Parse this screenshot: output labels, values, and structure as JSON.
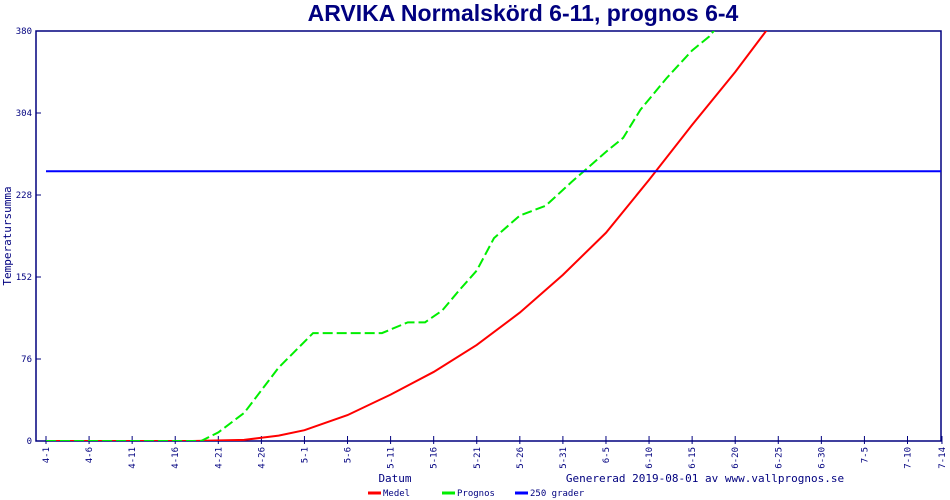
{
  "chart_data": {
    "type": "line",
    "title": "ARVIKA Normalskörd 6-11, prognos 6-4",
    "xlabel": "Datum",
    "ylabel": "Temperatursumma",
    "footer": "Genererad 2019-08-01 av www.vallprognos.se",
    "ylim": [
      0,
      380
    ],
    "yticks": [
      "0",
      "76",
      "152",
      "228",
      "304",
      "380"
    ],
    "xticks": [
      "4-1",
      "4-6",
      "4-11",
      "4-16",
      "4-21",
      "4-26",
      "5-1",
      "5-6",
      "5-11",
      "5-16",
      "5-21",
      "5-26",
      "5-31",
      "6-5",
      "6-10",
      "6-15",
      "6-20",
      "6-25",
      "6-30",
      "7-5",
      "7-10",
      "7-14"
    ],
    "xlim": [
      "4-1",
      "7-14"
    ],
    "grid": false,
    "legend": "bottom",
    "series": [
      {
        "name": "Medel",
        "color": "#ff0000",
        "style": "solid",
        "points": [
          [
            "4-1",
            0
          ],
          [
            "4-18",
            0
          ],
          [
            "4-24",
            1
          ],
          [
            "4-26",
            3
          ],
          [
            "4-28",
            5
          ],
          [
            "5-1",
            10
          ],
          [
            "5-6",
            24
          ],
          [
            "5-11",
            43
          ],
          [
            "5-16",
            64
          ],
          [
            "5-21",
            89
          ],
          [
            "5-26",
            119
          ],
          [
            "5-31",
            154
          ],
          [
            "6-5",
            193
          ],
          [
            "6-10",
            242
          ],
          [
            "6-15",
            293
          ],
          [
            "6-20",
            342
          ],
          [
            "6-25",
            395
          ]
        ]
      },
      {
        "name": "Prognos",
        "color": "#00ee00",
        "style": "dashed",
        "points": [
          [
            "4-1",
            0
          ],
          [
            "4-19",
            0
          ],
          [
            "4-21",
            8
          ],
          [
            "4-24",
            26
          ],
          [
            "4-28",
            68
          ],
          [
            "5-2",
            100
          ],
          [
            "5-10",
            100
          ],
          [
            "5-13",
            110
          ],
          [
            "5-15",
            110
          ],
          [
            "5-17",
            121
          ],
          [
            "5-19",
            140
          ],
          [
            "5-21",
            158
          ],
          [
            "5-23",
            188
          ],
          [
            "5-26",
            209
          ],
          [
            "5-29",
            218
          ],
          [
            "6-1",
            240
          ],
          [
            "6-5",
            268
          ],
          [
            "6-7",
            281
          ],
          [
            "6-9",
            307
          ],
          [
            "6-12",
            336
          ],
          [
            "6-15",
            362
          ],
          [
            "6-17",
            375
          ],
          [
            "6-19",
            395
          ]
        ]
      },
      {
        "name": "250 grader",
        "color": "#0000ff",
        "style": "solid",
        "points": [
          [
            "4-1",
            250
          ],
          [
            "7-14",
            250
          ]
        ]
      }
    ]
  }
}
